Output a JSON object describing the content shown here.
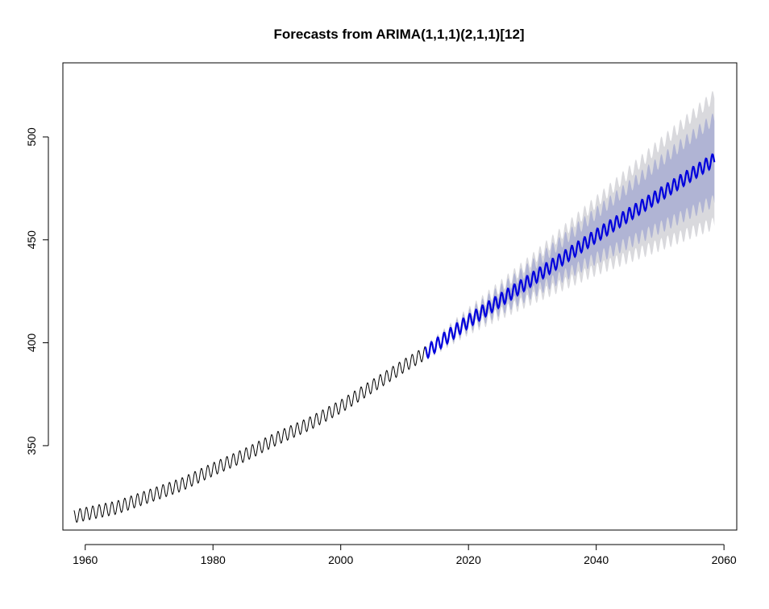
{
  "chart_data": {
    "type": "line",
    "title": "Forecasts from ARIMA(1,1,1)(2,1,1)[12]",
    "xlabel": "",
    "ylabel": "",
    "xlim": [
      1956.5,
      2062
    ],
    "ylim": [
      309,
      536
    ],
    "x_ticks": [
      1960,
      1980,
      2000,
      2020,
      2040,
      2060
    ],
    "y_ticks": [
      350,
      400,
      450,
      500
    ],
    "grid": false,
    "legend": "none",
    "seasonal_amplitude": 3.2,
    "historical": {
      "start": 1958.25,
      "end": 2013.25,
      "color": "#000000",
      "trend_knots": {
        "x": [
          1958,
          1965,
          1970,
          1975,
          1980,
          1985,
          1990,
          1995,
          2000,
          2005,
          2010,
          2013.25
        ],
        "y": [
          315.5,
          320,
          325.5,
          331,
          338.5,
          345.5,
          353.5,
          360.5,
          369,
          379,
          389,
          395
        ]
      }
    },
    "forecast": {
      "start": 2013.25,
      "end": 2058.5,
      "color": "#0000dd",
      "trend_knots": {
        "x": [
          2013.25,
          2020,
          2030,
          2040,
          2050,
          2058.5
        ],
        "y": [
          395,
          410.5,
          431,
          452,
          472,
          489
        ]
      },
      "interval_80_halfwidth_knots": {
        "x": [
          2013.25,
          2020,
          2030,
          2040,
          2050,
          2058.5
        ],
        "y": [
          0.6,
          2.5,
          6.5,
          11,
          16,
          20
        ]
      },
      "interval_95_halfwidth_knots": {
        "x": [
          2013.25,
          2020,
          2030,
          2040,
          2050,
          2058.5
        ],
        "y": [
          0.9,
          3.8,
          9.5,
          16.5,
          24.5,
          31
        ]
      },
      "interval_80_color": "#b0b4d4",
      "interval_95_color": "#d9d9dd"
    }
  }
}
